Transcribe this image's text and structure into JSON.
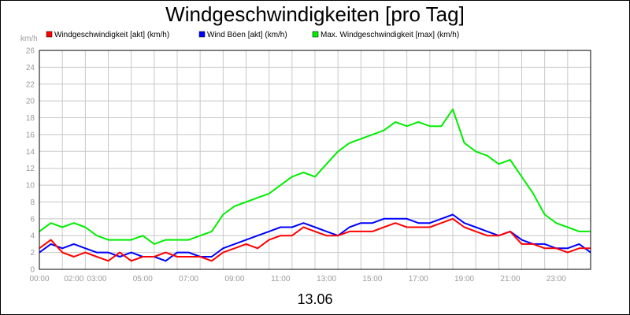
{
  "chart_data": {
    "type": "line",
    "title": "Windgeschwindigkeiten [pro Tag]",
    "ylabel": "km/h",
    "xlabel": "13.06",
    "ylim": [
      0,
      26
    ],
    "yticks": [
      0,
      2,
      4,
      6,
      8,
      10,
      12,
      14,
      16,
      18,
      20,
      22,
      24,
      26
    ],
    "x_tick_labels": [
      "00:00",
      "02:00",
      "03:00",
      "05:00",
      "07:00",
      "09:00",
      "11:00",
      "13:00",
      "15:00",
      "17:00",
      "19:00",
      "21:00",
      "23:00"
    ],
    "x_tick_hours": [
      0,
      1.5,
      2.5,
      4.5,
      6.5,
      8.5,
      10.5,
      12.5,
      14.5,
      16.5,
      18.5,
      20.5,
      22.5
    ],
    "grid": true,
    "legend_position": "top",
    "x_hours": [
      0,
      0.5,
      1,
      1.5,
      2,
      2.5,
      3,
      3.5,
      4,
      4.5,
      5,
      5.5,
      6,
      6.5,
      7,
      7.5,
      8,
      8.5,
      9,
      9.5,
      10,
      10.5,
      11,
      11.5,
      12,
      12.5,
      13,
      13.5,
      14,
      14.5,
      15,
      15.5,
      16,
      16.5,
      17,
      17.5,
      18,
      18.5,
      19,
      19.5,
      20,
      20.5,
      21,
      21.5,
      22,
      22.5,
      23,
      23.5,
      24
    ],
    "series": [
      {
        "name": "Windgeschwindigkeit [akt] (km/h)",
        "color": "#ff0000",
        "values": [
          2.5,
          3.5,
          2,
          1.5,
          2,
          1.5,
          1,
          2,
          1,
          1.5,
          1.5,
          2,
          1.5,
          1.5,
          1.5,
          1,
          2,
          2.5,
          3,
          2.5,
          3.5,
          4,
          4,
          5,
          4.5,
          4,
          4,
          4.5,
          4.5,
          4.5,
          5,
          5.5,
          5,
          5,
          5,
          5.5,
          6,
          5,
          4.5,
          4,
          4,
          4.5,
          3,
          3,
          2.5,
          2.5,
          2,
          2.5,
          2.5
        ]
      },
      {
        "name": "Wind Böen [akt] (km/h)",
        "color": "#0000ff",
        "values": [
          2,
          3,
          2.5,
          3,
          2.5,
          2,
          2,
          1.5,
          2,
          1.5,
          1.5,
          1,
          2,
          2,
          1.5,
          1.5,
          2.5,
          3,
          3.5,
          4,
          4.5,
          5,
          5,
          5.5,
          5,
          4.5,
          4,
          5,
          5.5,
          5.5,
          6,
          6,
          6,
          5.5,
          5.5,
          6,
          6.5,
          5.5,
          5,
          4.5,
          4,
          4.5,
          3.5,
          3,
          3,
          2.5,
          2.5,
          3,
          2
        ]
      },
      {
        "name": "Max. Windgeschwindigkeit [max] (km/h)",
        "color": "#00ee00",
        "values": [
          4.5,
          5.5,
          5,
          5.5,
          5,
          4,
          3.5,
          3.5,
          3.5,
          4,
          3,
          3.5,
          3.5,
          3.5,
          4,
          4.5,
          6.5,
          7.5,
          8,
          8.5,
          9,
          10,
          11,
          11.5,
          11,
          12.5,
          14,
          15,
          15.5,
          16,
          16.5,
          17.5,
          17,
          17.5,
          17,
          17,
          19,
          15,
          14,
          13.5,
          12.5,
          13,
          11,
          9,
          6.5,
          5.5,
          5,
          4.5,
          4.5
        ]
      }
    ]
  }
}
